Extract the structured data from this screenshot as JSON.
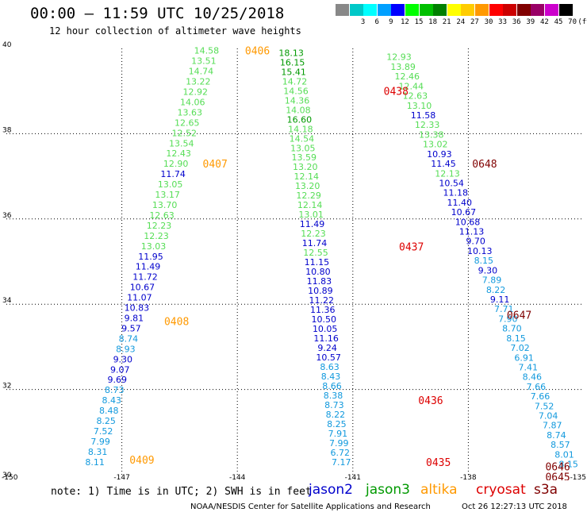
{
  "header": {
    "title": "00:00 – 11:59 UTC 10/25/2018",
    "subtitle": "12 hour collection of altimeter wave heights"
  },
  "color_scale": {
    "unit_label": "(ft)",
    "bins": [
      {
        "label": "",
        "color": "#888888"
      },
      {
        "label": "3",
        "color": "#00c8c8"
      },
      {
        "label": "6",
        "color": "#00ffff"
      },
      {
        "label": "9",
        "color": "#00a0ff"
      },
      {
        "label": "12",
        "color": "#0000ff"
      },
      {
        "label": "15",
        "color": "#00ff00"
      },
      {
        "label": "18",
        "color": "#00c000"
      },
      {
        "label": "21",
        "color": "#008000"
      },
      {
        "label": "24",
        "color": "#ffff00"
      },
      {
        "label": "27",
        "color": "#ffcc00"
      },
      {
        "label": "30",
        "color": "#ff9900"
      },
      {
        "label": "33",
        "color": "#ff0000"
      },
      {
        "label": "36",
        "color": "#cc0000"
      },
      {
        "label": "39",
        "color": "#800000"
      },
      {
        "label": "42",
        "color": "#990066"
      },
      {
        "label": "45",
        "color": "#cc00cc"
      },
      {
        "label": "70",
        "color": "#000000"
      }
    ]
  },
  "footer": {
    "note": "note: 1) Time is in UTC; 2) SWH is in feet",
    "satellites": [
      {
        "name": "jason2",
        "color": "#0000cc"
      },
      {
        "name": "jason3",
        "color": "#009900"
      },
      {
        "name": "altika",
        "color": "#ff9900"
      },
      {
        "name": "cryosat",
        "color": "#dd0000"
      },
      {
        "name": "s3a",
        "color": "#800000"
      }
    ],
    "credit": "NOAA/NESDIS Center for Satellite Applications and Research",
    "timestamp": "Oct 26 12:27:13 UTC 2018"
  },
  "chart_data": {
    "type": "scatter",
    "xlim": [
      -150,
      -135
    ],
    "ylim": [
      30,
      40
    ],
    "x_ticks": [
      "-150",
      "-147",
      "-144",
      "-141",
      "-138",
      "-135"
    ],
    "x_tick_values": [
      -150,
      -147,
      -144,
      -141,
      -138,
      -135
    ],
    "y_ticks": [
      "30",
      "32",
      "34",
      "36",
      "38",
      "40"
    ],
    "y_tick_values": [
      30,
      32,
      34,
      36,
      38,
      40
    ],
    "grid": true,
    "colors": {
      "lightgreen": "#55dd55",
      "green": "#009900",
      "blue": "#0000cc",
      "cyan": "#1199dd"
    },
    "tracks": [
      {
        "lat_start": 39.95,
        "lat_end": 30.3,
        "lon_start": -144.8,
        "lon_end": -147.7,
        "labels": [
          "14.58",
          "13.51",
          "14.74",
          "13.22",
          "12.92",
          "14.06",
          "13.63",
          "12.65",
          "12.52",
          "13.54",
          "12.43",
          "12.90",
          "11.74",
          "13.05",
          "13.17",
          "13.70",
          "12.63",
          "12.23",
          "12.23",
          "13.03",
          "11.95",
          "11.49",
          "11.72",
          "10.67",
          "11.07",
          "10.83",
          "9.81",
          "9.57",
          "8.74",
          "8.93",
          "9.30",
          "9.07",
          "9.69",
          "8.73",
          "8.43",
          "8.48",
          "8.25",
          "7.52",
          "7.99",
          "8.31",
          "8.11"
        ],
        "colors": [
          "lightgreen",
          "lightgreen",
          "lightgreen",
          "lightgreen",
          "lightgreen",
          "lightgreen",
          "lightgreen",
          "lightgreen",
          "lightgreen",
          "lightgreen",
          "lightgreen",
          "lightgreen",
          "blue",
          "lightgreen",
          "lightgreen",
          "lightgreen",
          "lightgreen",
          "lightgreen",
          "lightgreen",
          "lightgreen",
          "blue",
          "blue",
          "blue",
          "blue",
          "blue",
          "blue",
          "blue",
          "blue",
          "cyan",
          "cyan",
          "blue",
          "blue",
          "blue",
          "cyan",
          "cyan",
          "cyan",
          "cyan",
          "cyan",
          "cyan",
          "cyan",
          "cyan"
        ],
        "times": [
          {
            "label": "0406",
            "lat": 39.95,
            "lon": -143.8,
            "color": "#ff9900"
          },
          {
            "label": "0407",
            "lat": 37.3,
            "lon": -144.9,
            "color": "#ff9900"
          },
          {
            "label": "0408",
            "lat": 33.6,
            "lon": -145.9,
            "color": "#ff9900"
          },
          {
            "label": "0409",
            "lat": 30.35,
            "lon": -146.8,
            "color": "#ff9900"
          }
        ]
      },
      {
        "lat_start": 39.9,
        "lat_end": 30.3,
        "lon_start": -142.6,
        "lon_end": -141.3,
        "labels": [
          "18.13",
          "16.15",
          "15.41",
          "14.72",
          "14.56",
          "14.36",
          "14.08",
          "16.60",
          "14.18",
          "14.54",
          "13.05",
          "13.59",
          "13.20",
          "12.14",
          "13.20",
          "12.29",
          "12.14",
          "13.01",
          "11.49",
          "12.23",
          "11.74",
          "12.55",
          "11.15",
          "10.80",
          "11.83",
          "10.89",
          "11.22",
          "11.36",
          "10.50",
          "10.05",
          "11.16",
          "9.24",
          "10.57",
          "8.63",
          "8.43",
          "8.66",
          "8.38",
          "8.73",
          "8.22",
          "8.25",
          "7.91",
          "7.99",
          "6.72",
          "7.17"
        ],
        "colors": [
          "green",
          "green",
          "green",
          "lightgreen",
          "lightgreen",
          "lightgreen",
          "lightgreen",
          "green",
          "lightgreen",
          "lightgreen",
          "lightgreen",
          "lightgreen",
          "lightgreen",
          "lightgreen",
          "lightgreen",
          "lightgreen",
          "lightgreen",
          "lightgreen",
          "blue",
          "lightgreen",
          "blue",
          "lightgreen",
          "blue",
          "blue",
          "blue",
          "blue",
          "blue",
          "blue",
          "blue",
          "blue",
          "blue",
          "blue",
          "blue",
          "cyan",
          "cyan",
          "cyan",
          "cyan",
          "cyan",
          "cyan",
          "cyan",
          "cyan",
          "cyan",
          "cyan",
          "cyan"
        ],
        "times": [
          {
            "label": "0438",
            "lat": 39.0,
            "lon": -140.2,
            "color": "#dd0000"
          },
          {
            "label": "0437",
            "lat": 35.35,
            "lon": -139.8,
            "color": "#dd0000"
          },
          {
            "label": "0436",
            "lat": 31.75,
            "lon": -139.3,
            "color": "#dd0000"
          },
          {
            "label": "0435",
            "lat": 30.3,
            "lon": -139.1,
            "color": "#dd0000"
          }
        ]
      },
      {
        "lat_start": 39.8,
        "lat_end": 30.25,
        "lon_start": -139.8,
        "lon_end": -135.4,
        "labels": [
          "12.93",
          "13.89",
          "12.46",
          "12.44",
          "12.63",
          "13.10",
          "11.58",
          "12.33",
          "13.38",
          "13.02",
          "10.93",
          "11.45",
          "12.13",
          "10.54",
          "11.18",
          "11.40",
          "10.67",
          "10.68",
          "11.13",
          "9.70",
          "10.13",
          "8.15",
          "9.30",
          "7.89",
          "8.22",
          "9.11",
          "7.71",
          "7.90",
          "8.70",
          "8.15",
          "7.02",
          "6.91",
          "7.41",
          "8.46",
          "7.66",
          "7.66",
          "7.52",
          "7.04",
          "7.87",
          "8.74",
          "8.57",
          "8.01",
          "8.15"
        ],
        "colors": [
          "lightgreen",
          "lightgreen",
          "lightgreen",
          "lightgreen",
          "lightgreen",
          "lightgreen",
          "blue",
          "lightgreen",
          "lightgreen",
          "lightgreen",
          "blue",
          "blue",
          "lightgreen",
          "blue",
          "blue",
          "blue",
          "blue",
          "blue",
          "blue",
          "blue",
          "blue",
          "cyan",
          "blue",
          "cyan",
          "cyan",
          "blue",
          "cyan",
          "cyan",
          "cyan",
          "cyan",
          "cyan",
          "cyan",
          "cyan",
          "cyan",
          "cyan",
          "cyan",
          "cyan",
          "cyan",
          "cyan",
          "cyan",
          "cyan",
          "cyan",
          "cyan"
        ],
        "times": [
          {
            "label": "0648",
            "lat": 37.3,
            "lon": -137.9,
            "color": "#800000"
          },
          {
            "label": "0647",
            "lat": 33.75,
            "lon": -137.0,
            "color": "#800000"
          },
          {
            "label": "0646",
            "lat": 30.2,
            "lon": -136.0,
            "color": "#800000"
          },
          {
            "label": "0645",
            "lat": 29.95,
            "lon": -136.0,
            "color": "#800000"
          }
        ]
      }
    ]
  }
}
